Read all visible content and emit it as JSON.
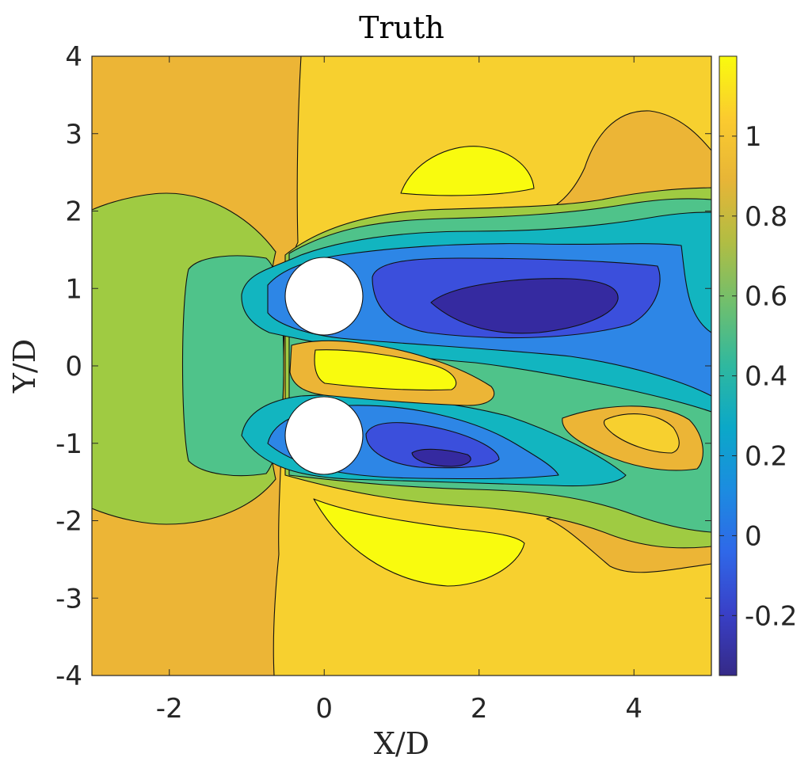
{
  "chart_data": {
    "type": "heatmap",
    "subtype": "filled-contour",
    "title": "Truth",
    "xlabel": "X/D",
    "ylabel": "Y/D",
    "xlim": [
      -3,
      5
    ],
    "ylim": [
      -4,
      4
    ],
    "xticks": [
      -2,
      0,
      2,
      4
    ],
    "xtick_labels": [
      "-2",
      "0",
      "2",
      "4"
    ],
    "yticks": [
      -4,
      -3,
      -2,
      -1,
      0,
      1,
      2,
      3,
      4
    ],
    "ytick_labels": [
      "-4",
      "-3",
      "-2",
      "-1",
      "0",
      "1",
      "2",
      "3",
      "4"
    ],
    "colorbar": {
      "range": [
        -0.35,
        1.2
      ],
      "colormap": "parula",
      "ticks": [
        -0.2,
        0,
        0.2,
        0.4,
        0.6,
        0.8,
        1
      ],
      "tick_labels": [
        "-0.2",
        "0",
        "0.2",
        "0.4",
        "0.6",
        "0.8",
        "1"
      ]
    },
    "cylinders": [
      {
        "center": [
          0,
          0.9
        ],
        "diameter": 1
      },
      {
        "center": [
          0,
          -0.9
        ],
        "diameter": 1
      }
    ],
    "features": {
      "background_level": 1.0,
      "upstream_level": 0.9,
      "stagnation_region_level": 0.7,
      "gap_jet_peak_level": 1.15,
      "outer_yellow_lobes_level": 1.15,
      "upper_wake_min_level": -0.3,
      "lower_wake_min_level": -0.3,
      "lower_right_blob_level": 1.0
    },
    "grid": false
  }
}
